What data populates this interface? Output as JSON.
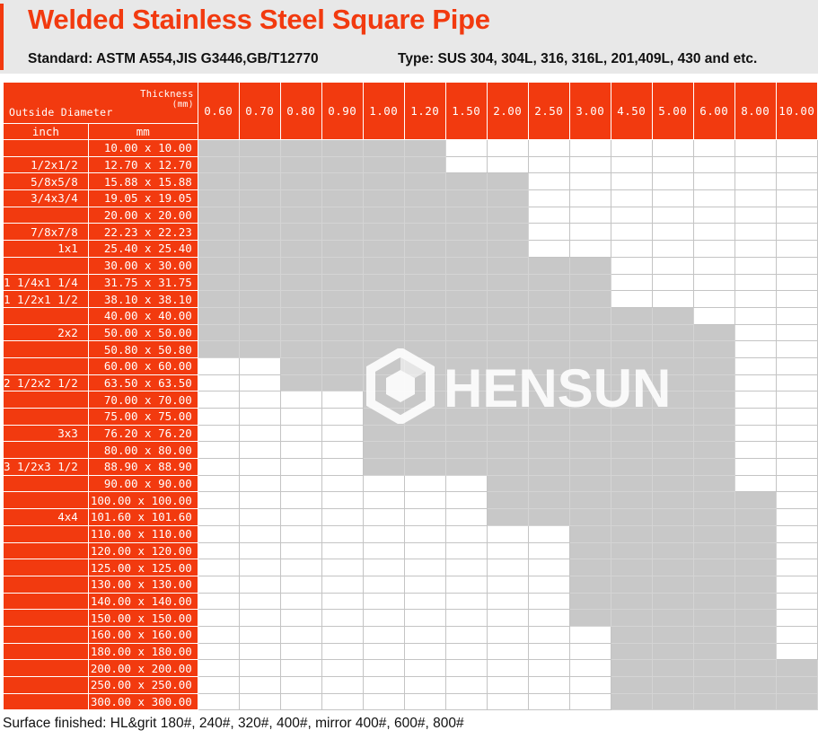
{
  "title": "Welded Stainless Steel Square Pipe",
  "standard": "Standard: ASTM A554,JIS G3446,GB/T12770",
  "type": "Type: SUS 304, 304L, 316, 316L, 201,409L, 430 and etc.",
  "table": {
    "thickness_label": "Thickness",
    "thickness_unit": "(mm)",
    "outside_diameter_label": "Outside Diameter",
    "unit_inch": "inch",
    "unit_mm": "mm",
    "thicknesses": [
      "0.60",
      "0.70",
      "0.80",
      "0.90",
      "1.00",
      "1.20",
      "1.50",
      "2.00",
      "2.50",
      "3.00",
      "4.50",
      "5.00",
      "6.00",
      "8.00",
      "10.00"
    ],
    "rows": [
      {
        "inch": "",
        "mm": "10.00  x  10.00",
        "avail": [
          0,
          5
        ]
      },
      {
        "inch": "1/2x1/2",
        "mm": "12.70  x  12.70",
        "avail": [
          0,
          5
        ]
      },
      {
        "inch": "5/8x5/8",
        "mm": "15.88  x  15.88",
        "avail": [
          0,
          7
        ]
      },
      {
        "inch": "3/4x3/4",
        "mm": "19.05  x  19.05",
        "avail": [
          0,
          7
        ]
      },
      {
        "inch": "",
        "mm": "20.00  x  20.00",
        "avail": [
          0,
          7
        ]
      },
      {
        "inch": "7/8x7/8",
        "mm": "22.23  x  22.23",
        "avail": [
          0,
          7
        ]
      },
      {
        "inch": "1x1",
        "mm": "25.40  x  25.40",
        "avail": [
          0,
          7
        ]
      },
      {
        "inch": "",
        "mm": "30.00  x  30.00",
        "avail": [
          0,
          9
        ]
      },
      {
        "inch": "1 1/4x1 1/4",
        "mm": "31.75  x  31.75",
        "avail": [
          0,
          9
        ]
      },
      {
        "inch": "1 1/2x1 1/2",
        "mm": "38.10  x  38.10",
        "avail": [
          0,
          9
        ]
      },
      {
        "inch": "",
        "mm": "40.00  x  40.00",
        "avail": [
          0,
          11
        ]
      },
      {
        "inch": "2x2",
        "mm": "50.00  x  50.00",
        "avail": [
          0,
          12
        ]
      },
      {
        "inch": "",
        "mm": "50.80  x  50.80",
        "avail": [
          0,
          12
        ]
      },
      {
        "inch": "",
        "mm": "60.00  x  60.00",
        "avail": [
          2,
          12
        ]
      },
      {
        "inch": "2 1/2x2 1/2",
        "mm": "63.50  x  63.50",
        "avail": [
          2,
          12
        ]
      },
      {
        "inch": "",
        "mm": "70.00  x  70.00",
        "avail": [
          4,
          12
        ]
      },
      {
        "inch": "",
        "mm": "75.00  x  75.00",
        "avail": [
          4,
          12
        ]
      },
      {
        "inch": "3x3",
        "mm": "76.20  x  76.20",
        "avail": [
          4,
          12
        ]
      },
      {
        "inch": "",
        "mm": "80.00  x  80.00",
        "avail": [
          4,
          12
        ]
      },
      {
        "inch": "3 1/2x3 1/2",
        "mm": "88.90  x  88.90",
        "avail": [
          4,
          12
        ]
      },
      {
        "inch": "",
        "mm": "90.00  x  90.00",
        "avail": [
          7,
          12
        ]
      },
      {
        "inch": "",
        "mm": "100.00  x 100.00",
        "avail": [
          7,
          13
        ]
      },
      {
        "inch": "4x4",
        "mm": "101.60  x 101.60",
        "avail": [
          7,
          13
        ]
      },
      {
        "inch": "",
        "mm": "110.00  x 110.00",
        "avail": [
          9,
          13
        ]
      },
      {
        "inch": "",
        "mm": "120.00  x 120.00",
        "avail": [
          9,
          13
        ]
      },
      {
        "inch": "",
        "mm": "125.00  x 125.00",
        "avail": [
          9,
          13
        ]
      },
      {
        "inch": "",
        "mm": "130.00  x 130.00",
        "avail": [
          9,
          13
        ]
      },
      {
        "inch": "",
        "mm": "140.00  x 140.00",
        "avail": [
          9,
          13
        ]
      },
      {
        "inch": "",
        "mm": "150.00  x 150.00",
        "avail": [
          9,
          13
        ]
      },
      {
        "inch": "",
        "mm": "160.00  x 160.00",
        "avail": [
          10,
          13
        ]
      },
      {
        "inch": "",
        "mm": "180.00  x 180.00",
        "avail": [
          10,
          13
        ]
      },
      {
        "inch": "",
        "mm": "200.00  x 200.00",
        "avail": [
          10,
          14
        ]
      },
      {
        "inch": "",
        "mm": "250.00  x 250.00",
        "avail": [
          10,
          14
        ]
      },
      {
        "inch": "",
        "mm": "300.00  x 300.00",
        "avail": [
          10,
          14
        ]
      }
    ]
  },
  "watermark": {
    "text": "HENSUN",
    "icon": "hensun-logo-icon"
  },
  "footer": "Surface finished: HL&grit 180#, 240#, 320#, 400#, mirror 400#, 600#, 800#",
  "colors": {
    "accent": "#f23a0f",
    "available": "#c8c8c8",
    "unavailable": "#ffffff",
    "header_bg": "#e8e8e8"
  }
}
